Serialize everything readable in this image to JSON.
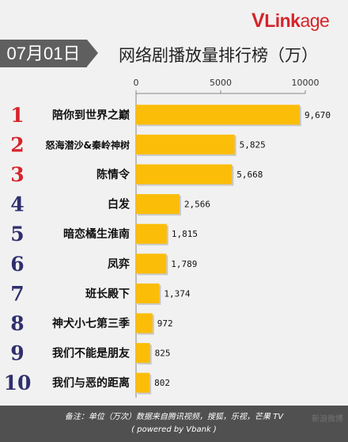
{
  "header": {
    "logo": {
      "v": "V",
      "link": "Link",
      "age": "age"
    },
    "date": "07月01日",
    "title": "网络剧播放量排行榜（万）"
  },
  "colors": {
    "bar": "#fbbd08",
    "rank_top3": "#d6242b",
    "rank_other": "#2f2f6e"
  },
  "chart_data": {
    "type": "bar",
    "orientation": "horizontal",
    "title": "网络剧播放量排行榜（万）",
    "xlim": [
      0,
      10000
    ],
    "xticks": [
      "0",
      "5000",
      "10000"
    ],
    "grid": false,
    "categories": [
      "陪你到世界之巅",
      "怒海潜沙&秦岭神树",
      "陈情令",
      "白发",
      "暗恋橘生淮南",
      "凤弈",
      "班长殿下",
      "神犬小七第三季",
      "我们不能是朋友",
      "我们与恶的距离"
    ],
    "ranks": [
      "1",
      "2",
      "3",
      "4",
      "5",
      "6",
      "7",
      "8",
      "9",
      "10"
    ],
    "values": [
      9670,
      5825,
      5668,
      2566,
      1815,
      1789,
      1374,
      972,
      825,
      802
    ],
    "value_labels": [
      "9,670",
      "5,825",
      "5,668",
      "2,566",
      "1,815",
      "1,789",
      "1,374",
      "972",
      "825",
      "802"
    ]
  },
  "footer": {
    "note": "备注：单位（万次）数据来自腾讯视频，搜狐，乐视，芒果 TV",
    "credit": "( powered by Vbank )"
  },
  "watermark": "新浪微博"
}
